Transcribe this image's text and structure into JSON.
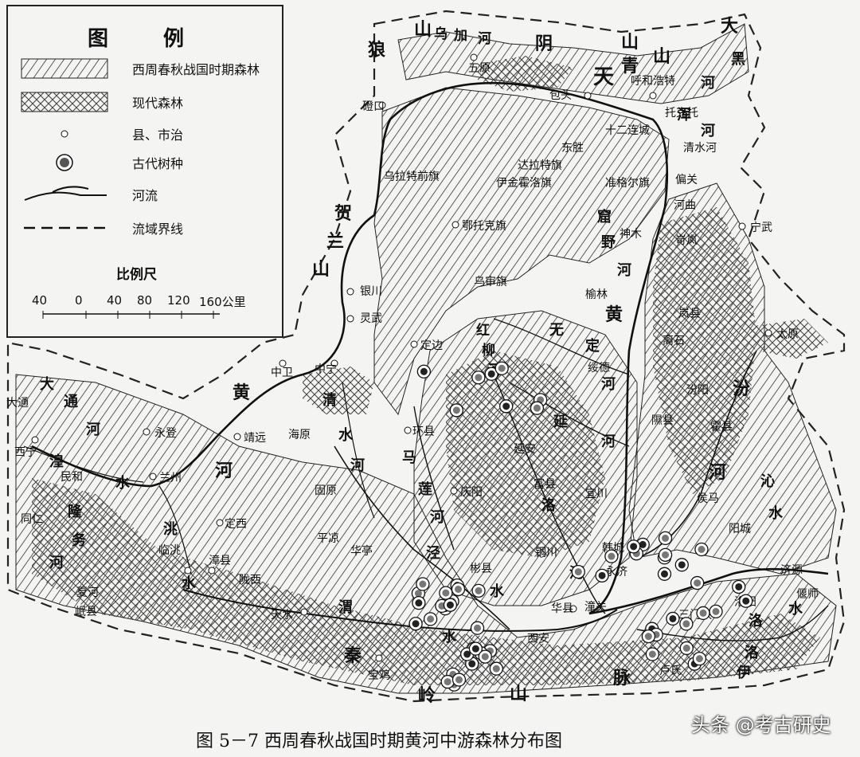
{
  "legend": {
    "title": "图  例",
    "items": [
      {
        "symbol": "diagonal-hatch",
        "label": "西周春秋战国时期森林"
      },
      {
        "symbol": "cross-hatch",
        "label": "现代森林"
      },
      {
        "symbol": "circle-icon",
        "label": "县、市治"
      },
      {
        "symbol": "tree-species-icon",
        "label": "古代树种"
      },
      {
        "symbol": "river-icon",
        "label": "河流"
      },
      {
        "symbol": "dashed-line-icon",
        "label": "流域界线"
      }
    ],
    "scale_label": "比例尺",
    "scale_ticks": [
      "40",
      "0",
      "40",
      "80",
      "120",
      "160公里"
    ]
  },
  "caption": "图 5－7   西周春秋战国时期黄河中游森林分布图",
  "watermark": "头条 @考古研史",
  "physical_labels": {
    "langshan": "狼",
    "wujia_1": "山",
    "wujia_2": "乌",
    "wujia_3": "加",
    "wujia_4": "河",
    "yin": "阴",
    "yinshan": "山",
    "daqing_1": "大",
    "daqing_2": "青",
    "daqing_3": "山",
    "tian": "天",
    "daheihe_1": "大",
    "daheihe_2": "黑",
    "daheihe_3": "河",
    "hunhe_1": "浑",
    "hunhe_2": "河",
    "helan_1": "贺",
    "helan_2": "兰",
    "helan_3": "山",
    "huanghe_n1": "黄",
    "huanghe_n2": "河",
    "kuye_1": "窟",
    "kuye_2": "野",
    "kuye_3": "河",
    "wuding_1": "无",
    "wuding_2": "定",
    "wuding_3": "河",
    "yanhe_1": "延",
    "yanhe_2": "河",
    "fen_1": "汾",
    "fen_2": "河",
    "qinshui_1": "沁",
    "qinshui_2": "水",
    "datong_1": "大",
    "datong_2": "通",
    "datong_3": "河",
    "huangshui_1": "湟",
    "huangshui_2": "水",
    "huanghe_w1": "黄",
    "huanghe_w2": "河",
    "qingshui_1": "清",
    "qingshui_2": "水",
    "qingshui_3": "河",
    "malian_1": "马",
    "malian_2": "莲",
    "malian_3": "河",
    "luohe_1": "洛",
    "luohe_2": "河",
    "jing_1": "泾",
    "jing_2": "水",
    "taohe_1": "洮",
    "taohe_2": "水",
    "longwu_1": "隆",
    "longwu_2": "务",
    "longwu_3": "河",
    "wei_1": "渭",
    "wei_2": "水",
    "qinling_1": "秦",
    "qinling_2": "岭",
    "qinling_3": "山",
    "qinling_4": "脉",
    "luoshui_1": "洛",
    "luoshui_2": "水",
    "yishui_1": "伊",
    "yishui_2": "水",
    "hong_1": "红",
    "hong_2": "柳",
    "hong_3": "河"
  },
  "places": [
    "五原",
    "包头",
    "呼和浩特",
    "托克托",
    "十二连城",
    "清水河",
    "偏关",
    "河曲",
    "宁武",
    "磴口",
    "乌拉特前旗",
    "乌审旗",
    "达拉特旗",
    "东胜",
    "伊金霍洛旗",
    "准格尔旗",
    "鄂托克旗",
    "神木",
    "保德",
    "府谷",
    "岢岚",
    "银川",
    "灵武",
    "乌审旗",
    "榆林",
    "岚县",
    "太原",
    "定边",
    "绥德",
    "离石",
    "汾阳",
    "中卫",
    "中宁",
    "吴旗",
    "延安",
    "隰县",
    "霍县",
    "汾西",
    "大通",
    "永登",
    "西宁",
    "民和",
    "靖远",
    "海原",
    "环县",
    "庆阳",
    "富县",
    "宜川",
    "侯马",
    "阳城",
    "兰州",
    "固原",
    "洮南",
    "定西",
    "陇西",
    "韩城",
    "平凉",
    "华亭",
    "彬县",
    "铜川",
    "永济",
    "济源",
    "洛阳",
    "偃师",
    "三门峡",
    "陇西",
    "临洮",
    "漳县",
    "天水",
    "宝鸡",
    "西安",
    "华县",
    "潼关",
    "卢氏",
    "同仁",
    "夏河",
    "岷县"
  ]
}
